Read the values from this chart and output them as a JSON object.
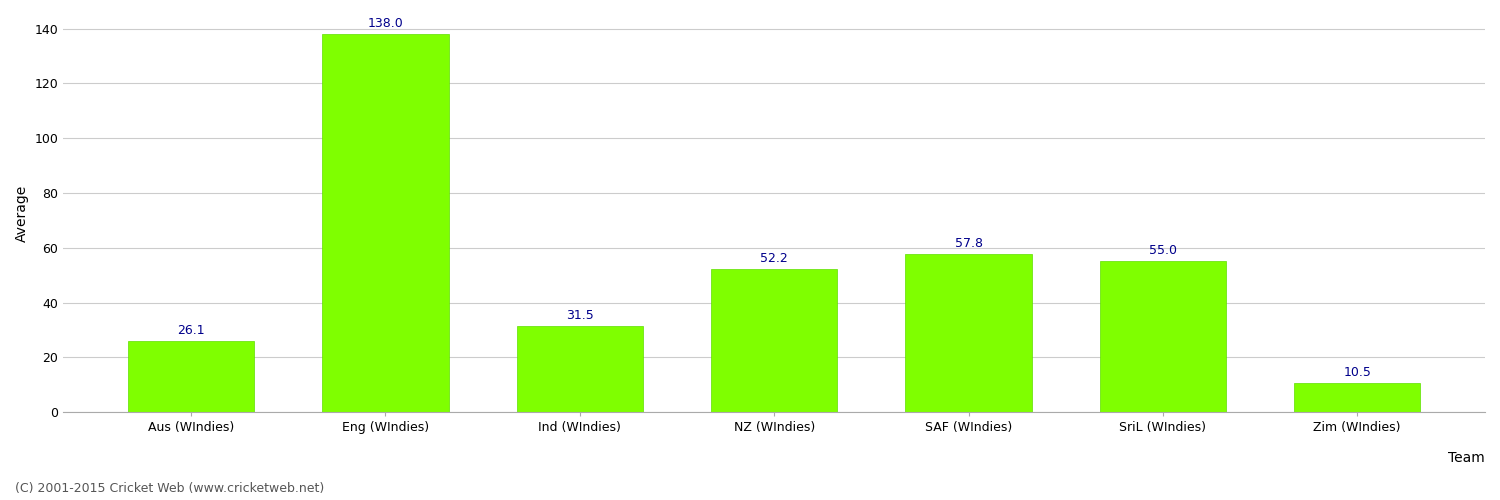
{
  "categories": [
    "Aus (WIndies)",
    "Eng (WIndies)",
    "Ind (WIndies)",
    "NZ (WIndies)",
    "SAF (WIndies)",
    "SriL (WIndies)",
    "Zim (WIndies)"
  ],
  "values": [
    26.1,
    138.0,
    31.5,
    52.2,
    57.8,
    55.0,
    10.5
  ],
  "bar_color": "#7fff00",
  "bar_edgecolor": "#5fdf00",
  "value_label_color": "#00008b",
  "value_label_fontsize": 9,
  "xlabel": "Team",
  "ylabel": "Average",
  "ylim": [
    0,
    145
  ],
  "yticks": [
    0,
    20,
    40,
    60,
    80,
    100,
    120,
    140
  ],
  "grid_color": "#cccccc",
  "background_color": "#ffffff",
  "footer_text": "(C) 2001-2015 Cricket Web (www.cricketweb.net)",
  "footer_color": "#555555",
  "footer_fontsize": 9,
  "axis_label_fontsize": 10,
  "tick_label_fontsize": 9,
  "figsize": [
    15.0,
    5.0
  ],
  "dpi": 100,
  "bar_width": 0.65
}
